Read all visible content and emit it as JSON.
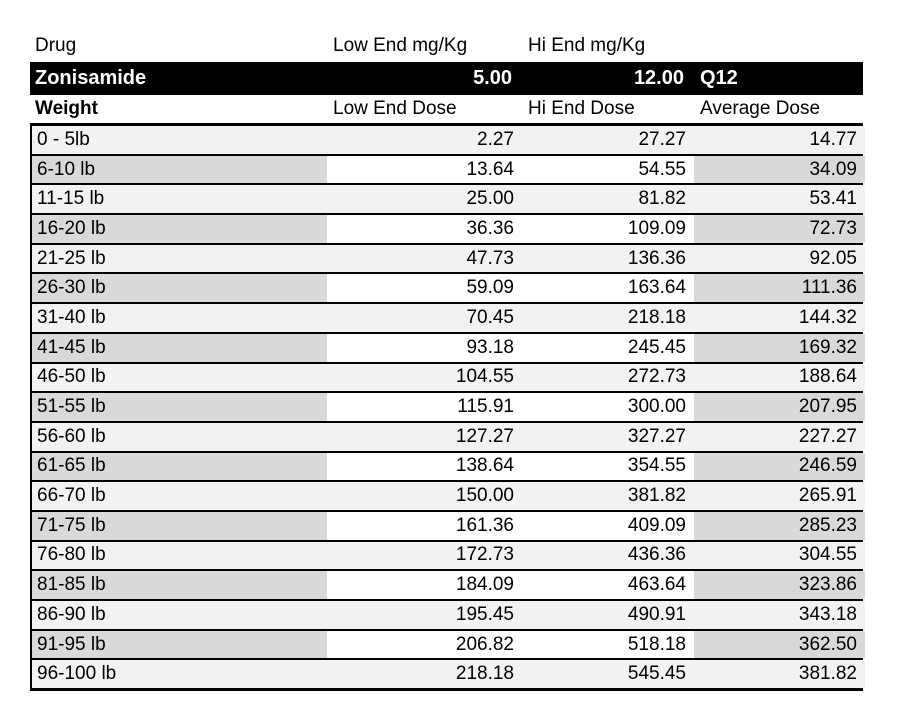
{
  "colors": {
    "band_light": "#f2f2f2",
    "band_dark": "#d9d9d9",
    "cell_white": "#ffffff",
    "highlight_bg": "#000000",
    "highlight_text": "#ffffff",
    "border_color": "#000000",
    "page_bg": "#ffffff"
  },
  "drug_header": {
    "drug": "Drug",
    "low_end": "Low End mg/Kg",
    "hi_end": "Hi End mg/Kg"
  },
  "drug_row": {
    "name": "Zonisamide",
    "low_end": "5.00",
    "hi_end": "12.00",
    "frequency": "Q12"
  },
  "dose_table": {
    "columns": [
      "Weight",
      "Low End Dose",
      "Hi End Dose",
      "Average Dose"
    ],
    "rows": [
      {
        "weight": "0 - 5lb",
        "low": "2.27",
        "hi": "27.27",
        "avg": "14.77"
      },
      {
        "weight": "6-10 lb",
        "low": "13.64",
        "hi": "54.55",
        "avg": "34.09"
      },
      {
        "weight": "11-15 lb",
        "low": "25.00",
        "hi": "81.82",
        "avg": "53.41"
      },
      {
        "weight": "16-20 lb",
        "low": "36.36",
        "hi": "109.09",
        "avg": "72.73"
      },
      {
        "weight": "21-25 lb",
        "low": "47.73",
        "hi": "136.36",
        "avg": "92.05"
      },
      {
        "weight": "26-30 lb",
        "low": "59.09",
        "hi": "163.64",
        "avg": "111.36"
      },
      {
        "weight": "31-40 lb",
        "low": "70.45",
        "hi": "218.18",
        "avg": "144.32"
      },
      {
        "weight": "41-45 lb",
        "low": "93.18",
        "hi": "245.45",
        "avg": "169.32"
      },
      {
        "weight": "46-50 lb",
        "low": "104.55",
        "hi": "272.73",
        "avg": "188.64"
      },
      {
        "weight": "51-55 lb",
        "low": "115.91",
        "hi": "300.00",
        "avg": "207.95"
      },
      {
        "weight": "56-60 lb",
        "low": "127.27",
        "hi": "327.27",
        "avg": "227.27"
      },
      {
        "weight": "61-65 lb",
        "low": "138.64",
        "hi": "354.55",
        "avg": "246.59"
      },
      {
        "weight": "66-70 lb",
        "low": "150.00",
        "hi": "381.82",
        "avg": "265.91"
      },
      {
        "weight": "71-75 lb",
        "low": "161.36",
        "hi": "409.09",
        "avg": "285.23"
      },
      {
        "weight": "76-80 lb",
        "low": "172.73",
        "hi": "436.36",
        "avg": "304.55"
      },
      {
        "weight": "81-85 lb",
        "low": "184.09",
        "hi": "463.64",
        "avg": "323.86"
      },
      {
        "weight": "86-90 lb",
        "low": "195.45",
        "hi": "490.91",
        "avg": "343.18"
      },
      {
        "weight": "91-95 lb",
        "low": "206.82",
        "hi": "518.18",
        "avg": "362.50"
      },
      {
        "weight": "96-100 lb",
        "low": "218.18",
        "hi": "545.45",
        "avg": "381.82"
      }
    ]
  }
}
